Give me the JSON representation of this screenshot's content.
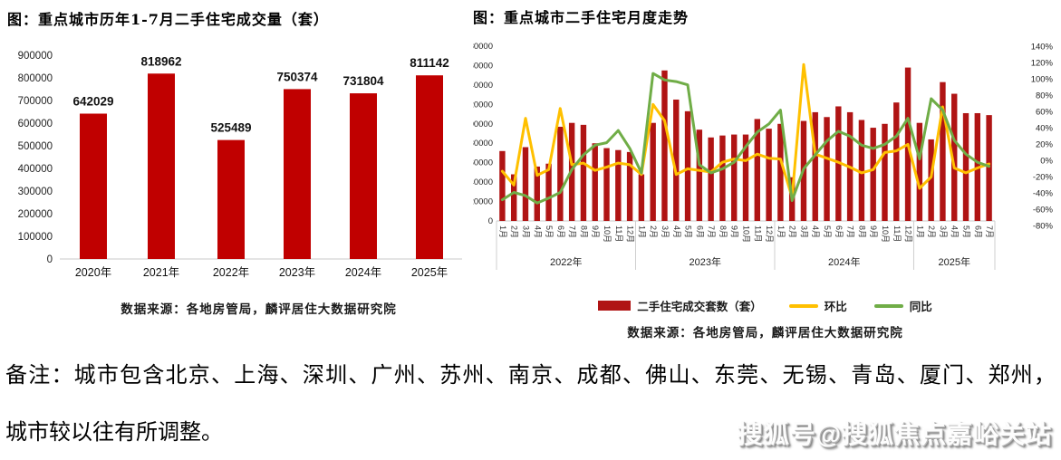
{
  "chart_data": [
    {
      "type": "bar",
      "title": "图：重点城市历年1-7月二手住宅成交量（套）",
      "source": "数据来源：各地房管局，麟评居住大数据研究院",
      "categories": [
        "2020年",
        "2021年",
        "2022年",
        "2023年",
        "2024年",
        "2025年"
      ],
      "values": [
        642029,
        818962,
        525489,
        750374,
        731804,
        811142
      ],
      "ylim": [
        0,
        900000
      ],
      "yticks": [
        0,
        100000,
        200000,
        300000,
        400000,
        500000,
        600000,
        700000,
        800000,
        900000
      ],
      "bar_color": "#C00000",
      "grid": false,
      "legend_position": "none"
    },
    {
      "type": "combo",
      "title": "图：重点城市二手住宅月度走势",
      "source": "数据来源：各地房管局，麟评居住大数据研究院",
      "x_labels": [
        "1月",
        "2月",
        "3月",
        "4月",
        "5月",
        "6月",
        "7月",
        "8月",
        "9月",
        "10月",
        "11月",
        "12月",
        "1月",
        "2月",
        "3月",
        "4月",
        "5月",
        "6月",
        "7月",
        "8月",
        "9月",
        "10月",
        "11月",
        "12月",
        "1月",
        "2月",
        "3月",
        "4月",
        "5月",
        "6月",
        "7月",
        "8月",
        "9月",
        "10月",
        "11月",
        "12月",
        "1月",
        "2月",
        "3月",
        "4月",
        "5月",
        "6月",
        "7月"
      ],
      "year_groups": [
        {
          "label": "2022年",
          "months": 12
        },
        {
          "label": "2023年",
          "months": 12
        },
        {
          "label": "2024年",
          "months": 12
        },
        {
          "label": "2025年",
          "months": 7
        }
      ],
      "left_axis": {
        "lim": [
          0,
          180000
        ],
        "step": 20000
      },
      "right_axis": {
        "lim": [
          -80,
          140
        ],
        "step": 20,
        "suffix": "%"
      },
      "grid": false,
      "legend_position": "bottom",
      "series": [
        {
          "name": "二手住宅成交套数（套）",
          "type": "bar",
          "axis": "left",
          "color": "#B01414",
          "values": [
            72000,
            48000,
            76000,
            56000,
            59000,
            97000,
            101000,
            99000,
            80000,
            75000,
            73000,
            71000,
            48000,
            101000,
            155000,
            125000,
            113000,
            94000,
            86000,
            88000,
            89000,
            89000,
            105000,
            95000,
            100000,
            45000,
            103000,
            112000,
            107000,
            118000,
            112000,
            104000,
            96000,
            100000,
            122000,
            158000,
            101000,
            84000,
            143000,
            131000,
            111000,
            111000,
            109000
          ]
        },
        {
          "name": "环比",
          "type": "line",
          "axis": "right",
          "color": "#FFC000",
          "values": [
            -13,
            -30,
            52,
            -18,
            -11,
            64,
            -5,
            -3,
            -12,
            -8,
            -3,
            -5,
            -17,
            69,
            49,
            -17,
            -10,
            -12,
            -14,
            -2,
            2,
            0,
            8,
            3,
            2,
            -45,
            118,
            8,
            3,
            -2,
            -8,
            -15,
            -11,
            10,
            12,
            20,
            -34,
            -20,
            66,
            -9,
            -15,
            -9,
            -4
          ]
        },
        {
          "name": "同比",
          "type": "line",
          "axis": "right",
          "color": "#70AD47",
          "values": [
            -48,
            -39,
            -43,
            -52,
            -46,
            -39,
            -11,
            7,
            19,
            22,
            37,
            15,
            -15,
            107,
            99,
            97,
            93,
            -5,
            -15,
            -10,
            -2,
            17,
            35,
            45,
            62,
            -49,
            -10,
            7,
            24,
            36,
            30,
            19,
            15,
            20,
            30,
            52,
            2,
            76,
            62,
            25,
            8,
            -2,
            -7
          ]
        }
      ]
    }
  ],
  "note": {
    "line1": "备注：城市包含北京、上海、深圳、广州、苏州、南京、成都、佛山、东莞、无锡、青岛、厦门、郑州，",
    "line2": "城市较以往有所调整。"
  },
  "watermark": "搜狐号@搜狐焦点嘉峪关站"
}
